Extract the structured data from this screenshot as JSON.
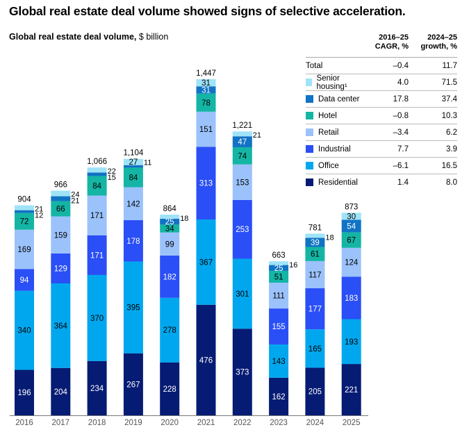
{
  "title": "Global real estate deal volume showed signs of selective acceleration.",
  "subtitle_bold": "Global real estate deal volume,",
  "subtitle_unit": "$ billion",
  "legend_table": {
    "col1": [
      "2016–25",
      "CAGR, %"
    ],
    "col2": [
      "2024–25",
      "growth, %"
    ],
    "rows": [
      {
        "name": "Total",
        "color": null,
        "cagr": "–0.4",
        "growth": "11.7"
      },
      {
        "name": "Senior housing¹",
        "color": "#9fe3f8",
        "cagr": "4.0",
        "growth": "71.5"
      },
      {
        "name": "Data center",
        "color": "#1173c4",
        "cagr": "17.8",
        "growth": "37.4"
      },
      {
        "name": "Hotel",
        "color": "#14b5a4",
        "cagr": "–0.8",
        "growth": "10.3"
      },
      {
        "name": "Retail",
        "color": "#9bc2fb",
        "cagr": "–3.4",
        "growth": "6.2"
      },
      {
        "name": "Industrial",
        "color": "#2a4ff6",
        "cagr": "7.7",
        "growth": "3.9"
      },
      {
        "name": "Office",
        "color": "#00a7ee",
        "cagr": "–6.1",
        "growth": "16.5"
      },
      {
        "name": "Residential",
        "color": "#061c74",
        "cagr": "1.4",
        "growth": "8.0"
      }
    ]
  },
  "chart_data": {
    "type": "bar",
    "stacked": true,
    "title": "Global real estate deal volume, $ billion",
    "xlabel": "",
    "ylabel": "",
    "categories": [
      "2016",
      "2017",
      "2018",
      "2019",
      "2020",
      "2021",
      "2022",
      "2023",
      "2024",
      "2025"
    ],
    "totals": [
      "904",
      "966",
      "1,066",
      "1,104",
      "864",
      "1,447",
      "1,221",
      "663",
      "781",
      "873"
    ],
    "series": [
      {
        "name": "Residential",
        "color": "#061c74",
        "label_color": "#ffffff",
        "values": [
          196,
          204,
          234,
          267,
          228,
          476,
          373,
          162,
          205,
          221
        ]
      },
      {
        "name": "Office",
        "color": "#00a7ee",
        "label_color": "#000000",
        "values": [
          340,
          364,
          370,
          395,
          278,
          367,
          301,
          143,
          165,
          193
        ]
      },
      {
        "name": "Industrial",
        "color": "#2a4ff6",
        "label_color": "#ffffff",
        "values": [
          94,
          129,
          171,
          178,
          182,
          313,
          253,
          155,
          177,
          183
        ]
      },
      {
        "name": "Retail",
        "color": "#9bc2fb",
        "label_color": "#000000",
        "values": [
          169,
          159,
          171,
          142,
          99,
          151,
          153,
          111,
          117,
          124
        ]
      },
      {
        "name": "Hotel",
        "color": "#14b5a4",
        "label_color": "#000000",
        "values": [
          72,
          66,
          84,
          84,
          34,
          78,
          74,
          51,
          61,
          67
        ]
      },
      {
        "name": "Data center",
        "color": "#1173c4",
        "label_color": "#ffffff",
        "values": [
          12,
          21,
          15,
          11,
          25,
          31,
          47,
          25,
          39,
          54
        ]
      },
      {
        "name": "Senior housing",
        "color": "#9fe3f8",
        "label_color": "#000000",
        "values": [
          21,
          24,
          22,
          27,
          18,
          31,
          21,
          16,
          18,
          30
        ]
      }
    ],
    "outside_labels": {
      "note": "small segments labeled to the right of the bar",
      "2016": [
        "Senior housing",
        "Data center"
      ],
      "2017": [
        "Senior housing",
        "Data center"
      ],
      "2018": [
        "Senior housing",
        "Data center"
      ],
      "2019": [
        "Data center"
      ],
      "2020": [
        "Senior housing"
      ],
      "2022": [
        "Senior housing"
      ],
      "2023": [
        "Senior housing"
      ],
      "2024": [
        "Senior housing"
      ]
    },
    "ylim": [
      0,
      1500
    ],
    "grid": false,
    "legend": "right (table)"
  }
}
